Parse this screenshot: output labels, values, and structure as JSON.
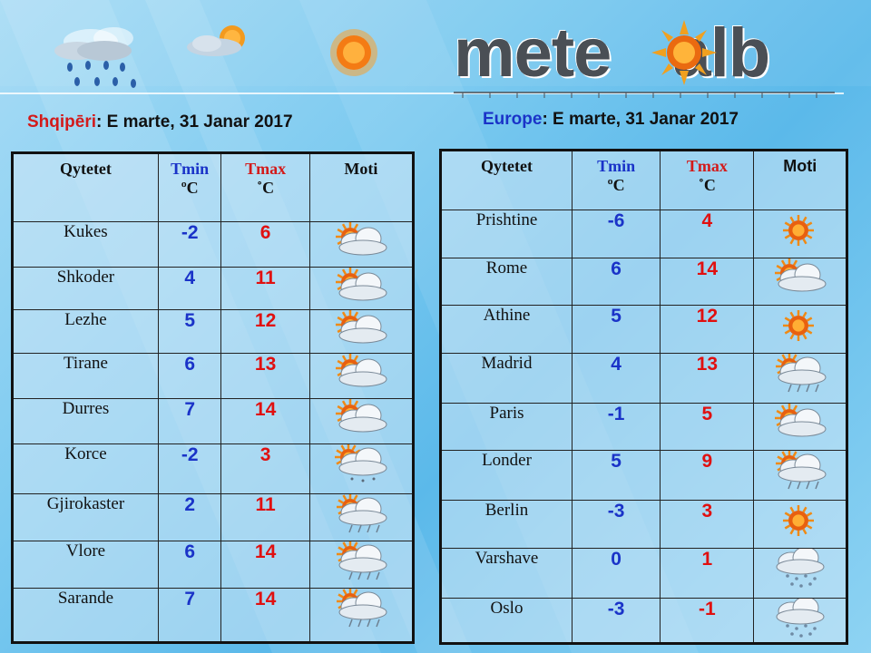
{
  "logo": {
    "left": "mete",
    "right": "alb",
    "sun_icon": "sun-icon"
  },
  "albania": {
    "region": "Shqipēri",
    "date": ": E marte, 31 Janar 2017",
    "headers": {
      "city": "Qytetet",
      "tmin": "Tmin",
      "tmin_unit": "ºC",
      "tmax": "Tmax",
      "tmax_unit": "˚C",
      "weather": "Moti"
    },
    "rows": [
      {
        "city": "Kukes",
        "tmin": "-2",
        "tmax": "6",
        "icon": "sun-cloud"
      },
      {
        "city": "Shkoder",
        "tmin": "4",
        "tmax": "11",
        "icon": "sun-cloud"
      },
      {
        "city": "Lezhe",
        "tmin": "5",
        "tmax": "12",
        "icon": "sun-cloud"
      },
      {
        "city": "Tirane",
        "tmin": "6",
        "tmax": "13",
        "icon": "sun-cloud"
      },
      {
        "city": "Durres",
        "tmin": "7",
        "tmax": "14",
        "icon": "sun-cloud"
      },
      {
        "city": "Korce",
        "tmin": "-2",
        "tmax": "3",
        "icon": "sun-cloud-snow"
      },
      {
        "city": "Gjirokaster",
        "tmin": "2",
        "tmax": "11",
        "icon": "sun-cloud-rain"
      },
      {
        "city": "Vlore",
        "tmin": "6",
        "tmax": "14",
        "icon": "sun-cloud-rain"
      },
      {
        "city": "Sarande",
        "tmin": "7",
        "tmax": "14",
        "icon": "sun-cloud-rain"
      }
    ]
  },
  "europe": {
    "region": "Europe",
    "date": ": E marte, 31 Janar 2017",
    "headers": {
      "city": "Qytetet",
      "tmin": "Tmin",
      "tmin_unit": "ºC",
      "tmax": "Tmax",
      "tmax_unit": "˚C",
      "weather": "Moti"
    },
    "rows": [
      {
        "city": "Prishtine",
        "tmin": "-6",
        "tmax": "4",
        "icon": "sun"
      },
      {
        "city": "Rome",
        "tmin": "6",
        "tmax": "14",
        "icon": "sun-cloud"
      },
      {
        "city": "Athine",
        "tmin": "5",
        "tmax": "12",
        "icon": "sun"
      },
      {
        "city": "Madrid",
        "tmin": "4",
        "tmax": "13",
        "icon": "sun-cloud-rain"
      },
      {
        "city": "Paris",
        "tmin": "-1",
        "tmax": "5",
        "icon": "sun-cloud"
      },
      {
        "city": "Londer",
        "tmin": "5",
        "tmax": "9",
        "icon": "sun-cloud-rain"
      },
      {
        "city": "Berlin",
        "tmin": "-3",
        "tmax": "3",
        "icon": "sun"
      },
      {
        "city": "Varshave",
        "tmin": "0",
        "tmax": "1",
        "icon": "cloud-snow"
      },
      {
        "city": "Oslo",
        "tmin": "-3",
        "tmax": "-1",
        "icon": "cloud-snow"
      }
    ]
  },
  "colors": {
    "tmin": "#1a33c8",
    "tmax": "#e01010",
    "region_al": "#d31a1a",
    "region_eu": "#1a33c8"
  }
}
